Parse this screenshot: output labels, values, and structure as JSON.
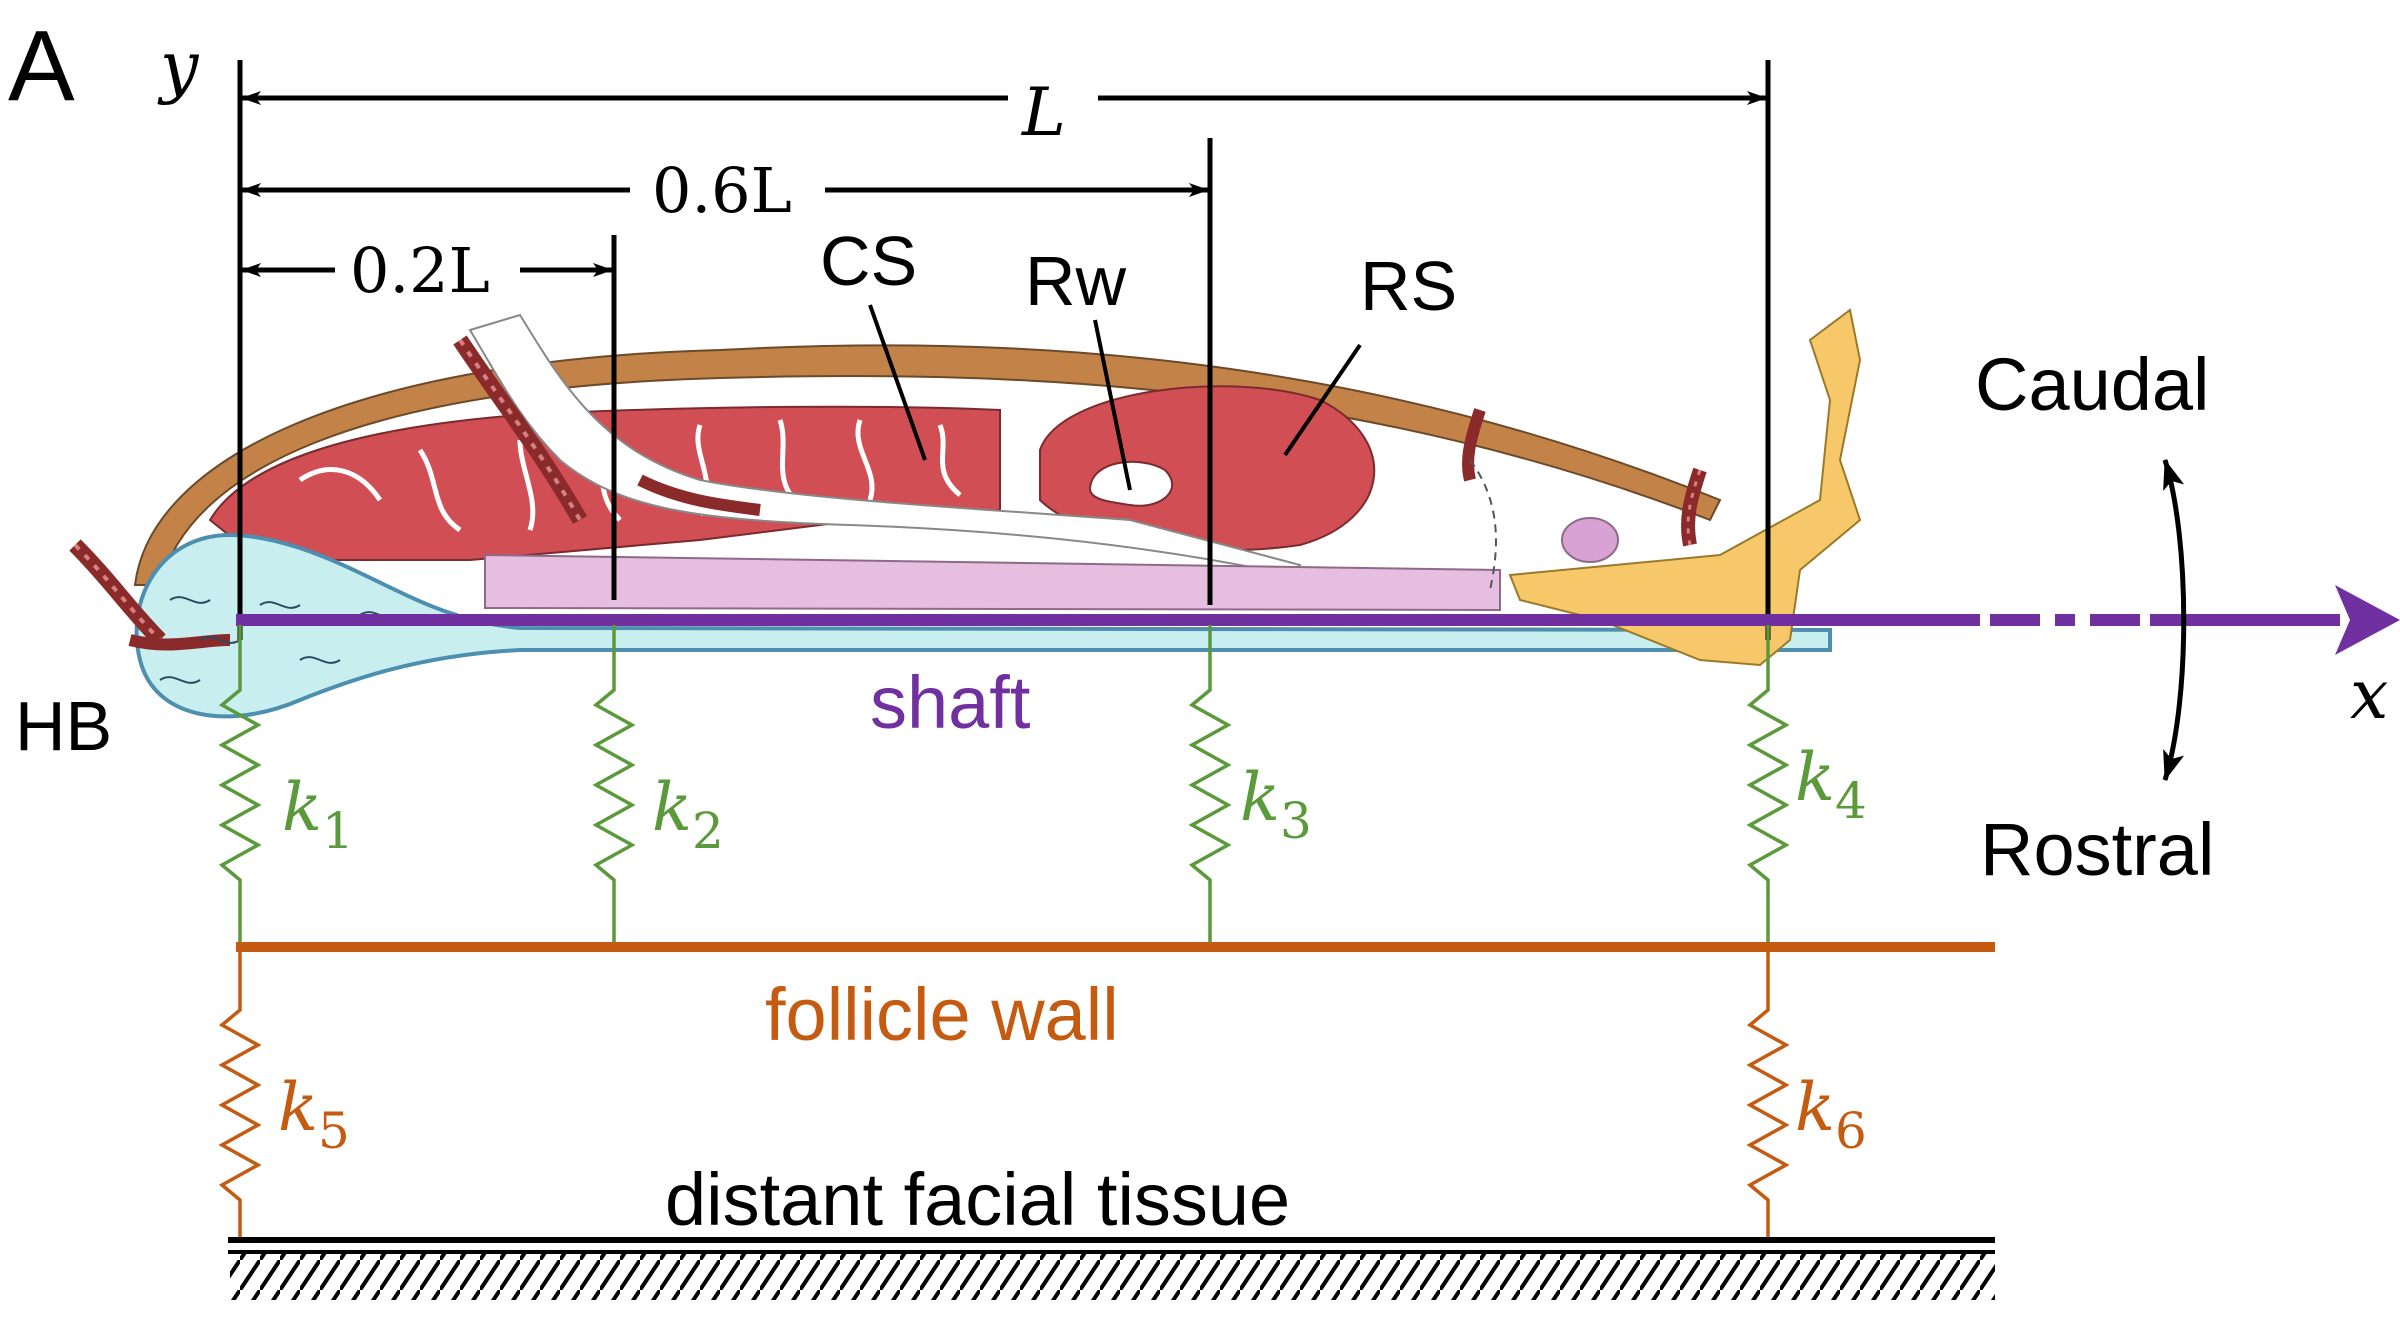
{
  "panel_letter": "A",
  "axes": {
    "y_label": "y",
    "x_label": "x"
  },
  "dimensions": {
    "full": "L",
    "d06": "0.6L",
    "d02": "0.2L"
  },
  "anatomy": {
    "cs": "CS",
    "rw": "Rw",
    "rs": "RS",
    "hb": "HB"
  },
  "shaft_label": "shaft",
  "directions": {
    "caudal": "Caudal",
    "rostral": "Rostral"
  },
  "springs": {
    "k1": {
      "sym": "k",
      "sub": "1"
    },
    "k2": {
      "sym": "k",
      "sub": "2"
    },
    "k3": {
      "sym": "k",
      "sub": "3"
    },
    "k4": {
      "sym": "k",
      "sub": "4"
    },
    "k5": {
      "sym": "k",
      "sub": "5"
    },
    "k6": {
      "sym": "k",
      "sub": "6"
    }
  },
  "follicle_wall_label": "follicle wall",
  "ground_label": "distant facial tissue",
  "colors": {
    "shaft": "#7030a0",
    "spring_inner": "#5a9a3a",
    "spring_outer": "#c55a11",
    "tissue_red": "#d9535a",
    "capsule_brown": "#b8773e",
    "sheath_pink": "#e6bfe0",
    "bulb_cyan": "#c8eef0",
    "plate_yellow": "#f7c86a"
  }
}
